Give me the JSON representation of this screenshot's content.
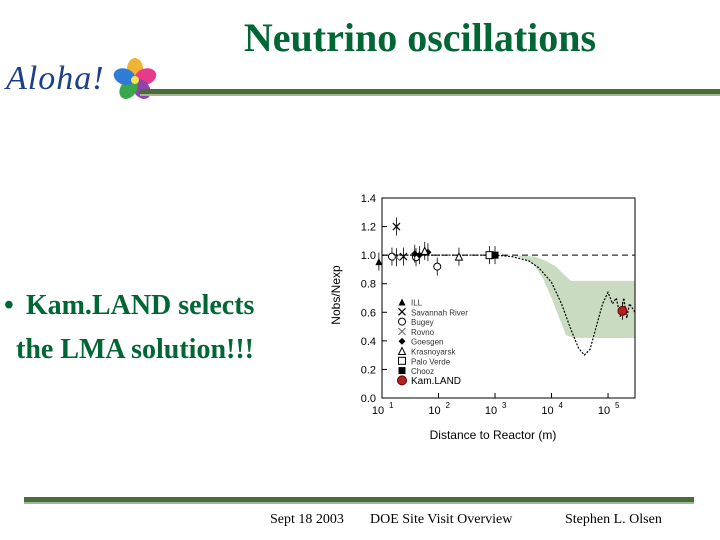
{
  "slide": {
    "title": "Neutrino oscillations",
    "logo_text": "Aloha!",
    "bullet": {
      "symbol": "•",
      "line1": "Kam.LAND selects",
      "line2": "the LMA solution!!!"
    },
    "footer": {
      "date": "Sept 18  2003",
      "event": "DOE Site Visit  Overview",
      "author": "Stephen L. Olsen"
    },
    "colors": {
      "title": "#006633",
      "rule": "#4a6b3a",
      "band": "#c9dcc2"
    }
  },
  "chart_data": {
    "type": "scatter",
    "xlabel": "Distance to Reactor (m)",
    "ylabel": "Nobs/Nexp",
    "xscale": "log",
    "xlim": [
      10,
      300000
    ],
    "ylim": [
      0.0,
      1.4
    ],
    "xticks": [
      {
        "v": 10,
        "base": "10",
        "exp": "1"
      },
      {
        "v": 100,
        "base": "10",
        "exp": "2"
      },
      {
        "v": 1000,
        "base": "10",
        "exp": "3"
      },
      {
        "v": 10000,
        "base": "10",
        "exp": "4"
      },
      {
        "v": 100000,
        "base": "10",
        "exp": "5"
      }
    ],
    "yticks": [
      "0.0",
      "0.2",
      "0.4",
      "0.6",
      "0.8",
      "1.0",
      "1.2",
      "1.4"
    ],
    "legend_position": "left-middle",
    "reference_line": 1.0,
    "series": [
      {
        "name": "ILL",
        "marker": "triangle",
        "points": [
          {
            "x": 8.8,
            "y": 0.955
          }
        ]
      },
      {
        "name": "Savannah River",
        "marker": "x",
        "points": [
          {
            "x": 18,
            "y": 1.2
          },
          {
            "x": 24,
            "y": 0.99
          }
        ]
      },
      {
        "name": "Bugey",
        "marker": "circle-open",
        "points": [
          {
            "x": 15,
            "y": 0.99
          },
          {
            "x": 40,
            "y": 0.985
          },
          {
            "x": 95,
            "y": 0.92
          }
        ]
      },
      {
        "name": "Rovno",
        "marker": "x-open",
        "points": [
          {
            "x": 18,
            "y": 0.985
          }
        ]
      },
      {
        "name": "Goesgen",
        "marker": "diamond",
        "points": [
          {
            "x": 38,
            "y": 1.01
          },
          {
            "x": 46,
            "y": 1.0
          },
          {
            "x": 65,
            "y": 1.02
          }
        ]
      },
      {
        "name": "Krasnoyarsk",
        "marker": "triangle-open",
        "points": [
          {
            "x": 57,
            "y": 1.03
          },
          {
            "x": 230,
            "y": 0.99
          }
        ]
      },
      {
        "name": "Palo Verde",
        "marker": "square-open",
        "points": [
          {
            "x": 800,
            "y": 1.0
          }
        ]
      },
      {
        "name": "Chooz",
        "marker": "square",
        "points": [
          {
            "x": 1000,
            "y": 1.0
          }
        ]
      },
      {
        "name": "Kam.LAND",
        "marker": "circle-red",
        "points": [
          {
            "x": 180000,
            "y": 0.61
          }
        ]
      }
    ],
    "prediction_curve": [
      {
        "x": 10,
        "y": 1.0
      },
      {
        "x": 1000,
        "y": 1.0
      },
      {
        "x": 2000,
        "y": 0.99
      },
      {
        "x": 4000,
        "y": 0.96
      },
      {
        "x": 6000,
        "y": 0.91
      },
      {
        "x": 10000,
        "y": 0.81
      },
      {
        "x": 15000,
        "y": 0.66
      },
      {
        "x": 22000,
        "y": 0.48
      },
      {
        "x": 30000,
        "y": 0.35
      },
      {
        "x": 38000,
        "y": 0.3
      },
      {
        "x": 48000,
        "y": 0.34
      },
      {
        "x": 60000,
        "y": 0.48
      },
      {
        "x": 80000,
        "y": 0.66
      },
      {
        "x": 100000,
        "y": 0.74
      },
      {
        "x": 120000,
        "y": 0.66
      },
      {
        "x": 140000,
        "y": 0.7
      },
      {
        "x": 165000,
        "y": 0.57
      },
      {
        "x": 190000,
        "y": 0.7
      },
      {
        "x": 215000,
        "y": 0.56
      },
      {
        "x": 240000,
        "y": 0.66
      },
      {
        "x": 300000,
        "y": 0.6
      }
    ],
    "band_upper": [
      {
        "x": 10,
        "y": 1.0
      },
      {
        "x": 2000,
        "y": 1.0
      },
      {
        "x": 5000,
        "y": 0.99
      },
      {
        "x": 8000,
        "y": 0.96
      },
      {
        "x": 12000,
        "y": 0.92
      },
      {
        "x": 16000,
        "y": 0.87
      },
      {
        "x": 22000,
        "y": 0.82
      },
      {
        "x": 300000,
        "y": 0.82
      }
    ],
    "band_lower": [
      {
        "x": 300000,
        "y": 0.42
      },
      {
        "x": 40000,
        "y": 0.42
      },
      {
        "x": 25000,
        "y": 0.42
      },
      {
        "x": 18000,
        "y": 0.44
      },
      {
        "x": 14000,
        "y": 0.55
      },
      {
        "x": 10000,
        "y": 0.7
      },
      {
        "x": 7000,
        "y": 0.84
      },
      {
        "x": 5000,
        "y": 0.93
      },
      {
        "x": 3000,
        "y": 0.98
      },
      {
        "x": 2000,
        "y": 1.0
      }
    ]
  }
}
